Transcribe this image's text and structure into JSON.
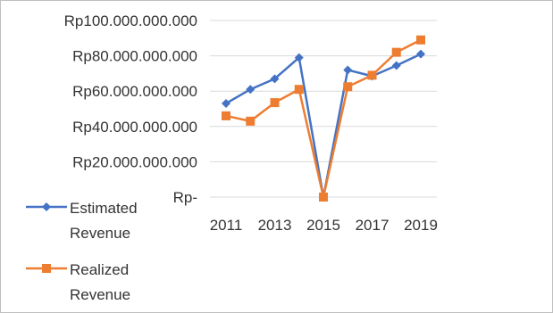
{
  "chart_data": {
    "type": "line",
    "title": "",
    "xlabel": "",
    "ylabel": "",
    "x": [
      2011,
      2012,
      2013,
      2014,
      2015,
      2016,
      2017,
      2018,
      2019
    ],
    "x_tick_labels": [
      "2011",
      "2013",
      "2015",
      "2017",
      "2019"
    ],
    "y_tick_labels": [
      "Rp100.000.000.000",
      "Rp80.000.000.000",
      "Rp60.000.000.000",
      "Rp40.000.000.000",
      "Rp20.000.000.000",
      "Rp-"
    ],
    "y_tick_values": [
      100000000000,
      80000000000,
      60000000000,
      40000000000,
      20000000000,
      0
    ],
    "ylim": [
      0,
      100000000000
    ],
    "grid": "horizontal",
    "legend_position": "bottom-left",
    "series": [
      {
        "name": "Estimated Revenue",
        "legend_lines": [
          "Estimated",
          "Revenue"
        ],
        "marker": "diamond",
        "color": "#4472C4",
        "values": [
          53000000000,
          61000000000,
          67000000000,
          79000000000,
          0,
          72000000000,
          68500000000,
          74500000000,
          81000000000
        ]
      },
      {
        "name": "Realized Revenue",
        "legend_lines": [
          "Realized",
          "Revenue"
        ],
        "marker": "square",
        "color": "#ED7D31",
        "values": [
          46000000000,
          43000000000,
          53500000000,
          61000000000,
          0,
          62500000000,
          69000000000,
          82000000000,
          89000000000
        ]
      }
    ]
  }
}
